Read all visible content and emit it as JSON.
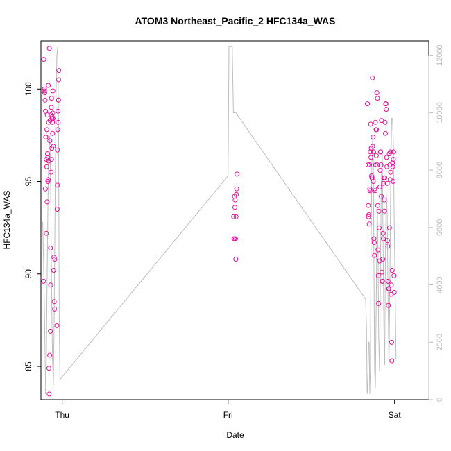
{
  "chart_data": {
    "type": "scatter",
    "title": "ATOM3 Northeast_Pacific_2 HFC134a_WAS",
    "xlabel": "Date",
    "ylabel": "HFC134a_WAS",
    "x_ticks": [
      "Thu",
      "Fri",
      "Sat"
    ],
    "y_ticks": [
      85,
      90,
      95,
      100
    ],
    "y_right_ticks": [
      0,
      2000,
      4000,
      6000,
      8000,
      10000,
      12000
    ],
    "ylim": [
      83.2,
      102.6
    ],
    "ylim_right": [
      0,
      12500
    ],
    "xlim_hours": [
      -3.6,
      62.1
    ],
    "colors": {
      "points": "#e6109a",
      "altitude_line": "#bdbdbd",
      "frame": "#000000",
      "right_axis": "#bdbdbd"
    },
    "series": [
      {
        "role": "points",
        "color": "#e6109a",
        "points": [
          [
            -3.15,
            89.6
          ],
          [
            -3.12,
            101.6
          ],
          [
            -3.03,
            99.9
          ],
          [
            -3.0,
            100.0
          ],
          [
            -2.95,
            99.8
          ],
          [
            -2.9,
            99.4
          ],
          [
            -2.85,
            94.6
          ],
          [
            -2.82,
            98.8
          ],
          [
            -2.78,
            97.4
          ],
          [
            -2.75,
            97.4
          ],
          [
            -2.7,
            96.2
          ],
          [
            -2.68,
            92.2
          ],
          [
            -2.62,
            95.8
          ],
          [
            -2.6,
            97.8
          ],
          [
            -2.55,
            93.9
          ],
          [
            -2.52,
            98.6
          ],
          [
            -2.48,
            96.5
          ],
          [
            -2.45,
            96.3
          ],
          [
            -2.42,
            95.0
          ],
          [
            -2.38,
            95.1
          ],
          [
            -2.35,
            100.2
          ],
          [
            -2.3,
            98.2
          ],
          [
            -2.28,
            96.1
          ],
          [
            -2.25,
            84.9
          ],
          [
            -2.2,
            83.5
          ],
          [
            -2.18,
            102.2
          ],
          [
            -2.12,
            85.6
          ],
          [
            -2.1,
            97.2
          ],
          [
            -2.05,
            98.3
          ],
          [
            -2.0,
            86.9
          ],
          [
            -1.98,
            91.4
          ],
          [
            -1.95,
            89.4
          ],
          [
            -1.92,
            98.6
          ],
          [
            -1.9,
            95.5
          ],
          [
            -1.85,
            99.0
          ],
          [
            -1.82,
            96.2
          ],
          [
            -1.8,
            99.5
          ],
          [
            -1.75,
            96.8
          ],
          [
            -1.72,
            98.4
          ],
          [
            -1.7,
            98.5
          ],
          [
            -1.65,
            98.2
          ],
          [
            -1.62,
            97.6
          ],
          [
            -1.6,
            98.7
          ],
          [
            -1.58,
            99.9
          ],
          [
            -1.55,
            98.4
          ],
          [
            -1.5,
            96.9
          ],
          [
            -1.45,
            90.2
          ],
          [
            -1.4,
            90.9
          ],
          [
            -1.35,
            88.5
          ],
          [
            -1.3,
            88.1
          ],
          [
            -1.25,
            90.8
          ],
          [
            -0.9,
            87.2
          ],
          [
            -0.85,
            93.5
          ],
          [
            -0.82,
            94.8
          ],
          [
            -0.8,
            96.7
          ],
          [
            -0.75,
            97.8
          ],
          [
            -0.72,
            98.8
          ],
          [
            -0.7,
            98.2
          ],
          [
            -0.65,
            99.4
          ],
          [
            -0.62,
            99.4
          ],
          [
            -0.6,
            100.5
          ],
          [
            -0.58,
            101.0
          ],
          [
            29.05,
            93.1
          ],
          [
            29.1,
            91.9
          ],
          [
            29.15,
            91.9
          ],
          [
            29.2,
            94.2
          ],
          [
            29.25,
            93.6
          ],
          [
            29.3,
            94.0
          ],
          [
            29.35,
            91.9
          ],
          [
            29.4,
            90.8
          ],
          [
            29.45,
            93.1
          ],
          [
            29.5,
            94.3
          ],
          [
            29.55,
            94.6
          ],
          [
            29.6,
            95.4
          ],
          [
            51.7,
            99.2
          ],
          [
            51.8,
            95.9
          ],
          [
            51.85,
            93.7
          ],
          [
            51.9,
            93.1
          ],
          [
            51.95,
            93.2
          ],
          [
            52.0,
            92.7
          ],
          [
            52.05,
            95.9
          ],
          [
            52.1,
            94.6
          ],
          [
            52.15,
            94.5
          ],
          [
            52.2,
            96.6
          ],
          [
            52.25,
            98.1
          ],
          [
            52.3,
            96.3
          ],
          [
            52.35,
            96.8
          ],
          [
            52.4,
            95.3
          ],
          [
            52.45,
            95.2
          ],
          [
            52.5,
            95.2
          ],
          [
            52.55,
            100.6
          ],
          [
            52.6,
            96.9
          ],
          [
            52.65,
            97.4
          ],
          [
            52.7,
            95.0
          ],
          [
            52.75,
            96.6
          ],
          [
            52.8,
            91.9
          ],
          [
            52.85,
            91.7
          ],
          [
            52.9,
            91.0
          ],
          [
            52.95,
            94.6
          ],
          [
            53.0,
            94.5
          ],
          [
            53.05,
            98.2
          ],
          [
            53.1,
            95.9
          ],
          [
            53.15,
            97.8
          ],
          [
            53.2,
            96.4
          ],
          [
            53.25,
            97.8
          ],
          [
            53.3,
            99.8
          ],
          [
            53.35,
            95.9
          ],
          [
            53.4,
            99.5
          ],
          [
            53.45,
            93.7
          ],
          [
            53.5,
            91.3
          ],
          [
            53.55,
            89.9
          ],
          [
            53.6,
            88.4
          ],
          [
            53.65,
            93.4
          ],
          [
            53.7,
            92.5
          ],
          [
            53.75,
            90.7
          ],
          [
            53.8,
            94.7
          ],
          [
            53.85,
            95.6
          ],
          [
            53.9,
            96.6
          ],
          [
            53.95,
            96.6
          ],
          [
            54.0,
            95.9
          ],
          [
            54.05,
            94.2
          ],
          [
            54.1,
            98.3
          ],
          [
            54.15,
            90.1
          ],
          [
            54.2,
            89.6
          ],
          [
            54.25,
            89.6
          ],
          [
            54.3,
            90.8
          ],
          [
            54.35,
            92.2
          ],
          [
            54.4,
            91.9
          ],
          [
            54.45,
            94.9
          ],
          [
            54.5,
            95.2
          ],
          [
            54.55,
            94.0
          ],
          [
            54.6,
            93.4
          ],
          [
            54.65,
            95.2
          ],
          [
            54.7,
            98.2
          ],
          [
            54.75,
            97.6
          ],
          [
            54.8,
            99.2
          ],
          [
            54.85,
            99.2
          ],
          [
            54.9,
            98.9
          ],
          [
            54.95,
            96.3
          ],
          [
            55.0,
            95.8
          ],
          [
            55.05,
            94.9
          ],
          [
            55.1,
            91.8
          ],
          [
            55.15,
            91.5
          ],
          [
            55.2,
            89.6
          ],
          [
            55.25,
            88.3
          ],
          [
            55.3,
            89.2
          ],
          [
            55.35,
            89.2
          ],
          [
            55.4,
            96.5
          ],
          [
            55.45,
            92.5
          ],
          [
            55.5,
            95.9
          ],
          [
            55.55,
            95.1
          ],
          [
            55.6,
            96.6
          ],
          [
            55.65,
            95.5
          ],
          [
            55.7,
            88.9
          ],
          [
            55.75,
            89.4
          ],
          [
            55.8,
            86.3
          ],
          [
            55.85,
            85.3
          ],
          [
            55.9,
            90.2
          ],
          [
            55.95,
            96.0
          ],
          [
            56.0,
            95.8
          ],
          [
            56.05,
            95.0
          ],
          [
            56.1,
            96.2
          ],
          [
            56.15,
            96.6
          ],
          [
            56.2,
            89.9
          ],
          [
            56.25,
            89.0
          ]
        ]
      },
      {
        "role": "altitude",
        "axis": "right",
        "color": "#bdbdbd",
        "points": [
          [
            -3.3,
            6200
          ],
          [
            -3.1,
            4200
          ],
          [
            -2.95,
            2500
          ],
          [
            -2.8,
            200
          ],
          [
            -2.7,
            1200
          ],
          [
            -2.55,
            4200
          ],
          [
            -2.4,
            7000
          ],
          [
            -2.25,
            8800
          ],
          [
            -2.1,
            9200
          ],
          [
            -1.95,
            7500
          ],
          [
            -1.8,
            4000
          ],
          [
            -1.65,
            1500
          ],
          [
            -1.5,
            500
          ],
          [
            -1.35,
            2800
          ],
          [
            -1.2,
            6800
          ],
          [
            -1.05,
            10500
          ],
          [
            -0.9,
            12000
          ],
          [
            -0.75,
            12300
          ],
          [
            -0.62,
            9500
          ],
          [
            -0.5,
            2800
          ],
          [
            -0.38,
            700
          ],
          [
            28.1,
            7800
          ],
          [
            28.25,
            12300
          ],
          [
            28.8,
            12300
          ],
          [
            29.0,
            10000
          ],
          [
            29.4,
            10000
          ],
          [
            51.4,
            3500
          ],
          [
            51.55,
            2500
          ],
          [
            51.65,
            300
          ],
          [
            51.72,
            200
          ],
          [
            51.8,
            900
          ],
          [
            51.9,
            2000
          ],
          [
            52.0,
            2000
          ],
          [
            52.1,
            200
          ],
          [
            52.2,
            1000
          ],
          [
            52.3,
            4800
          ],
          [
            52.45,
            8200
          ],
          [
            52.6,
            9200
          ],
          [
            52.7,
            8400
          ],
          [
            52.8,
            5000
          ],
          [
            52.92,
            1000
          ],
          [
            53.05,
            400
          ],
          [
            53.2,
            3500
          ],
          [
            53.35,
            6800
          ],
          [
            53.5,
            5200
          ],
          [
            53.62,
            2200
          ],
          [
            53.75,
            1000
          ],
          [
            53.9,
            4200
          ],
          [
            54.05,
            7600
          ],
          [
            54.2,
            8700
          ],
          [
            54.35,
            5600
          ],
          [
            54.5,
            2500
          ],
          [
            54.62,
            1200
          ],
          [
            54.75,
            4800
          ],
          [
            54.9,
            7200
          ],
          [
            55.05,
            6500
          ],
          [
            55.2,
            3500
          ],
          [
            55.35,
            1200
          ],
          [
            55.5,
            3800
          ],
          [
            55.65,
            7500
          ],
          [
            55.8,
            9800
          ],
          [
            55.95,
            9800
          ],
          [
            56.1,
            9000
          ],
          [
            56.25,
            6200
          ],
          [
            56.4,
            3800
          ],
          [
            56.55,
            1400
          ]
        ]
      }
    ]
  }
}
